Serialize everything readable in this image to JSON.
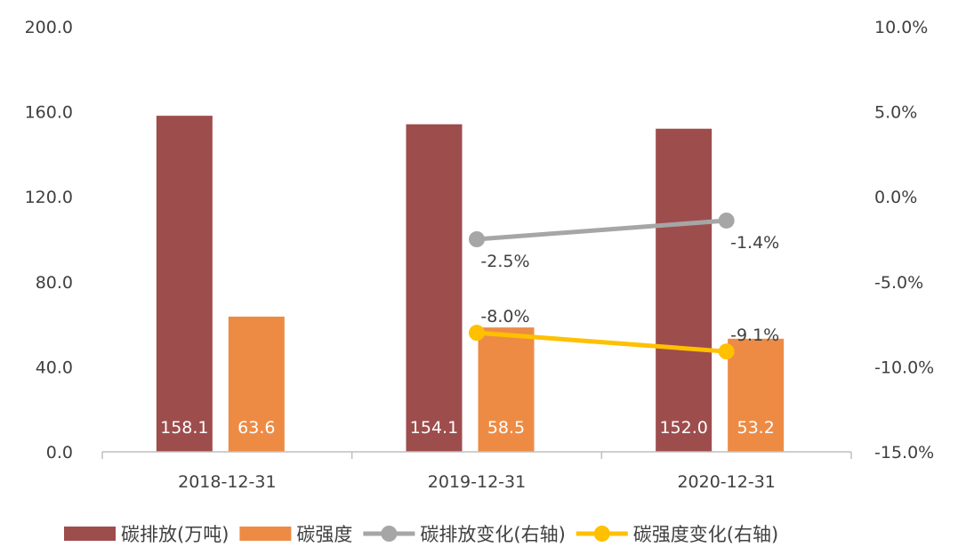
{
  "chart_data": {
    "type": "bar",
    "categories": [
      "2018-12-31",
      "2019-12-31",
      "2020-12-31"
    ],
    "left_axis": {
      "ticks": [
        "0.0",
        "40.0",
        "80.0",
        "120.0",
        "160.0",
        "200.0"
      ],
      "range": [
        0,
        200
      ]
    },
    "right_axis": {
      "ticks": [
        "-15.0%",
        "-10.0%",
        "-5.0%",
        "0.0%",
        "5.0%",
        "10.0%"
      ],
      "range": [
        -15,
        10
      ]
    },
    "series": [
      {
        "name": "碳排放(万吨)",
        "type": "bar",
        "axis": "left",
        "color": "#9e4d4d",
        "values": [
          158.1,
          154.1,
          152.0
        ],
        "labels": [
          "158.1",
          "154.1",
          "152.0"
        ]
      },
      {
        "name": "碳强度",
        "type": "bar",
        "axis": "left",
        "color": "#ed8b45",
        "values": [
          63.6,
          58.5,
          53.2
        ],
        "labels": [
          "63.6",
          "58.5",
          "53.2"
        ]
      },
      {
        "name": "碳排放变化(右轴)",
        "type": "line",
        "axis": "right",
        "color": "#a6a6a6",
        "values": [
          null,
          -2.5,
          -1.4
        ],
        "labels": [
          null,
          "-2.5%",
          "-1.4%"
        ]
      },
      {
        "name": "碳强度变化(右轴)",
        "type": "line",
        "axis": "right",
        "color": "#ffc000",
        "values": [
          null,
          -8.0,
          -9.1
        ],
        "labels": [
          null,
          "-8.0%",
          "-9.1%"
        ]
      }
    ],
    "legend_position": "bottom",
    "grid": false
  }
}
